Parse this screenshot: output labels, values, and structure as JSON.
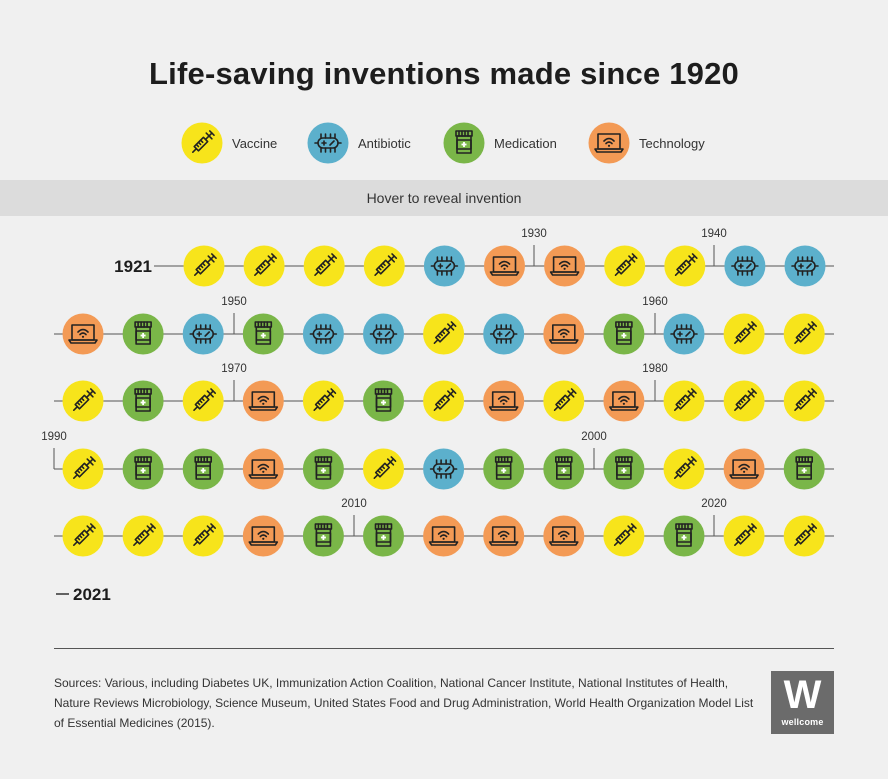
{
  "title": "Life-saving inventions made since 1920",
  "legend": [
    {
      "key": "vaccine",
      "label": "Vaccine",
      "color": "#f7e41b",
      "icon": "syringe-icon"
    },
    {
      "key": "antibiotic",
      "label": "Antibiotic",
      "color": "#5cb0cc",
      "icon": "bacteria-icon"
    },
    {
      "key": "medication",
      "label": "Medication",
      "color": "#7ab648",
      "icon": "pill-bottle-icon"
    },
    {
      "key": "technology",
      "label": "Technology",
      "color": "#f39a55",
      "icon": "laptop-icon"
    }
  ],
  "hover_text": "Hover to reveal invention",
  "chart_data": {
    "type": "timeline",
    "start_label": "1921",
    "end_label": "2021",
    "decade_labels": [
      "1930",
      "1940",
      "1950",
      "1960",
      "1970",
      "1980",
      "1990",
      "2000",
      "2010",
      "2020"
    ],
    "categories": [
      "Vaccine",
      "Antibiotic",
      "Medication",
      "Technology"
    ],
    "rows": [
      [
        "vaccine",
        "vaccine",
        "vaccine",
        "vaccine",
        "antibiotic",
        "technology",
        "technology",
        "vaccine",
        "vaccine",
        "antibiotic",
        "antibiotic"
      ],
      [
        "technology",
        "medication",
        "antibiotic",
        "medication",
        "antibiotic",
        "antibiotic",
        "vaccine",
        "antibiotic",
        "technology",
        "medication",
        "antibiotic",
        "vaccine",
        "vaccine"
      ],
      [
        "vaccine",
        "medication",
        "vaccine",
        "technology",
        "vaccine",
        "medication",
        "vaccine",
        "technology",
        "vaccine",
        "technology",
        "vaccine",
        "vaccine",
        "vaccine"
      ],
      [
        "vaccine",
        "medication",
        "medication",
        "technology",
        "medication",
        "vaccine",
        "antibiotic",
        "medication",
        "medication",
        "medication",
        "vaccine",
        "technology",
        "medication"
      ],
      [
        "vaccine",
        "vaccine",
        "vaccine",
        "technology",
        "medication",
        "medication",
        "technology",
        "technology",
        "technology",
        "vaccine",
        "medication",
        "vaccine",
        "vaccine"
      ]
    ]
  },
  "sources_text": "Sources: Various, including Diabetes UK, Immunization Action Coalition, National Cancer Institute, National Institutes of Health, Nature Reviews Microbiology, Science Museum, United States Food and Drug Administration, World Health Organization Model List of Essential Medicines (2015).",
  "logo": {
    "letter": "W",
    "word": "wellcome"
  }
}
